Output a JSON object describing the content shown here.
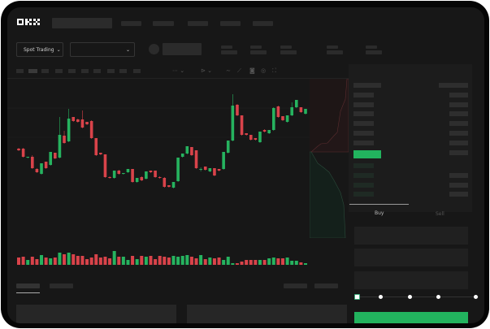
{
  "header": {
    "logo": "OKX"
  },
  "market_bar": {
    "market_type_label": "Spot Trading"
  },
  "trade_form": {
    "tabs": [
      {
        "label": "Buy",
        "active": true
      },
      {
        "label": "Sell",
        "active": false
      }
    ],
    "slider_percent": 0,
    "accent_color": "#22b35e"
  },
  "orderbook": {
    "view_icons": [
      "orderbook-both-icon",
      "orderbook-bids-icon",
      "orderbook-asks-icon"
    ]
  },
  "colors": {
    "up": "#26b35f",
    "down": "#d9434a",
    "background": "#171717"
  },
  "chart_data": {
    "type": "candlestick",
    "candles": [
      [
        68,
        69,
        65,
        66
      ],
      [
        68,
        69,
        57,
        58
      ],
      [
        57,
        58,
        56,
        58
      ],
      [
        58,
        60,
        43,
        44
      ],
      [
        43,
        44,
        38,
        39
      ],
      [
        37,
        50,
        36,
        50
      ],
      [
        52,
        52,
        43,
        44
      ],
      [
        48,
        64,
        47,
        64
      ],
      [
        63,
        63,
        55,
        56
      ],
      [
        57,
        107,
        56,
        85
      ],
      [
        84,
        90,
        74,
        75
      ],
      [
        77,
        117,
        76,
        105
      ],
      [
        107,
        107,
        101,
        102
      ],
      [
        104,
        105,
        100,
        101
      ],
      [
        104,
        115,
        93,
        94
      ],
      [
        101,
        101,
        97,
        98
      ],
      [
        102,
        103,
        80,
        81
      ],
      [
        81,
        81,
        59,
        60
      ],
      [
        63,
        63,
        60,
        61
      ],
      [
        61,
        61,
        32,
        33
      ],
      [
        33,
        34,
        31,
        32
      ],
      [
        32,
        41,
        31,
        41
      ],
      [
        41,
        42,
        36,
        37
      ],
      [
        37,
        38,
        36,
        38
      ],
      [
        39,
        43,
        38,
        43
      ],
      [
        43,
        43,
        26,
        27
      ],
      [
        27,
        32,
        26,
        32
      ],
      [
        33,
        34,
        28,
        29
      ],
      [
        31,
        40,
        30,
        40
      ],
      [
        41,
        41,
        38,
        39
      ],
      [
        41,
        41,
        32,
        33
      ],
      [
        33,
        34,
        31,
        32
      ],
      [
        32,
        33,
        20,
        21
      ],
      [
        23,
        23,
        20,
        21
      ],
      [
        20,
        27,
        19,
        27
      ],
      [
        28,
        57,
        27,
        57
      ],
      [
        58,
        62,
        57,
        62
      ],
      [
        62,
        71,
        61,
        71
      ],
      [
        70,
        70,
        59,
        60
      ],
      [
        66,
        66,
        43,
        44
      ],
      [
        42,
        45,
        40,
        43
      ],
      [
        46,
        46,
        41,
        42
      ],
      [
        40,
        44,
        39,
        44
      ],
      [
        44,
        44,
        34,
        35
      ],
      [
        43,
        43,
        40,
        41
      ],
      [
        43,
        64,
        42,
        64
      ],
      [
        63,
        78,
        62,
        78
      ],
      [
        78,
        135,
        77,
        121
      ],
      [
        122,
        123,
        108,
        109
      ],
      [
        109,
        109,
        84,
        85
      ],
      [
        87,
        87,
        84,
        85
      ],
      [
        85,
        85,
        78,
        79
      ],
      [
        81,
        81,
        78,
        79
      ],
      [
        76,
        89,
        75,
        89
      ],
      [
        91,
        92,
        88,
        89
      ],
      [
        87,
        91,
        86,
        91
      ],
      [
        91,
        119,
        90,
        118
      ],
      [
        120,
        121,
        106,
        107
      ],
      [
        108,
        108,
        102,
        103
      ],
      [
        101,
        109,
        100,
        109
      ],
      [
        109,
        125,
        108,
        119
      ],
      [
        119,
        128,
        118,
        128
      ],
      [
        119,
        119,
        112,
        113
      ],
      [
        111,
        117,
        110,
        117
      ]
    ],
    "candle_format": [
      "open",
      "high",
      "low",
      "close"
    ],
    "volume": [
      9,
      10,
      6,
      10,
      7,
      12,
      9,
      8,
      9,
      15,
      13,
      15,
      13,
      11,
      11,
      7,
      9,
      13,
      9,
      10,
      8,
      17,
      10,
      10,
      6,
      11,
      7,
      11,
      10,
      11,
      7,
      11,
      10,
      9,
      11,
      10,
      11,
      12,
      10,
      8,
      12,
      7,
      9,
      8,
      9,
      6,
      10,
      2,
      2,
      4,
      6,
      6,
      6,
      6,
      6,
      8,
      9,
      8,
      8,
      9,
      5,
      5,
      3,
      2
    ],
    "depth": {
      "asks_color": "#d9434a",
      "bids_color": "#26b35f"
    }
  }
}
